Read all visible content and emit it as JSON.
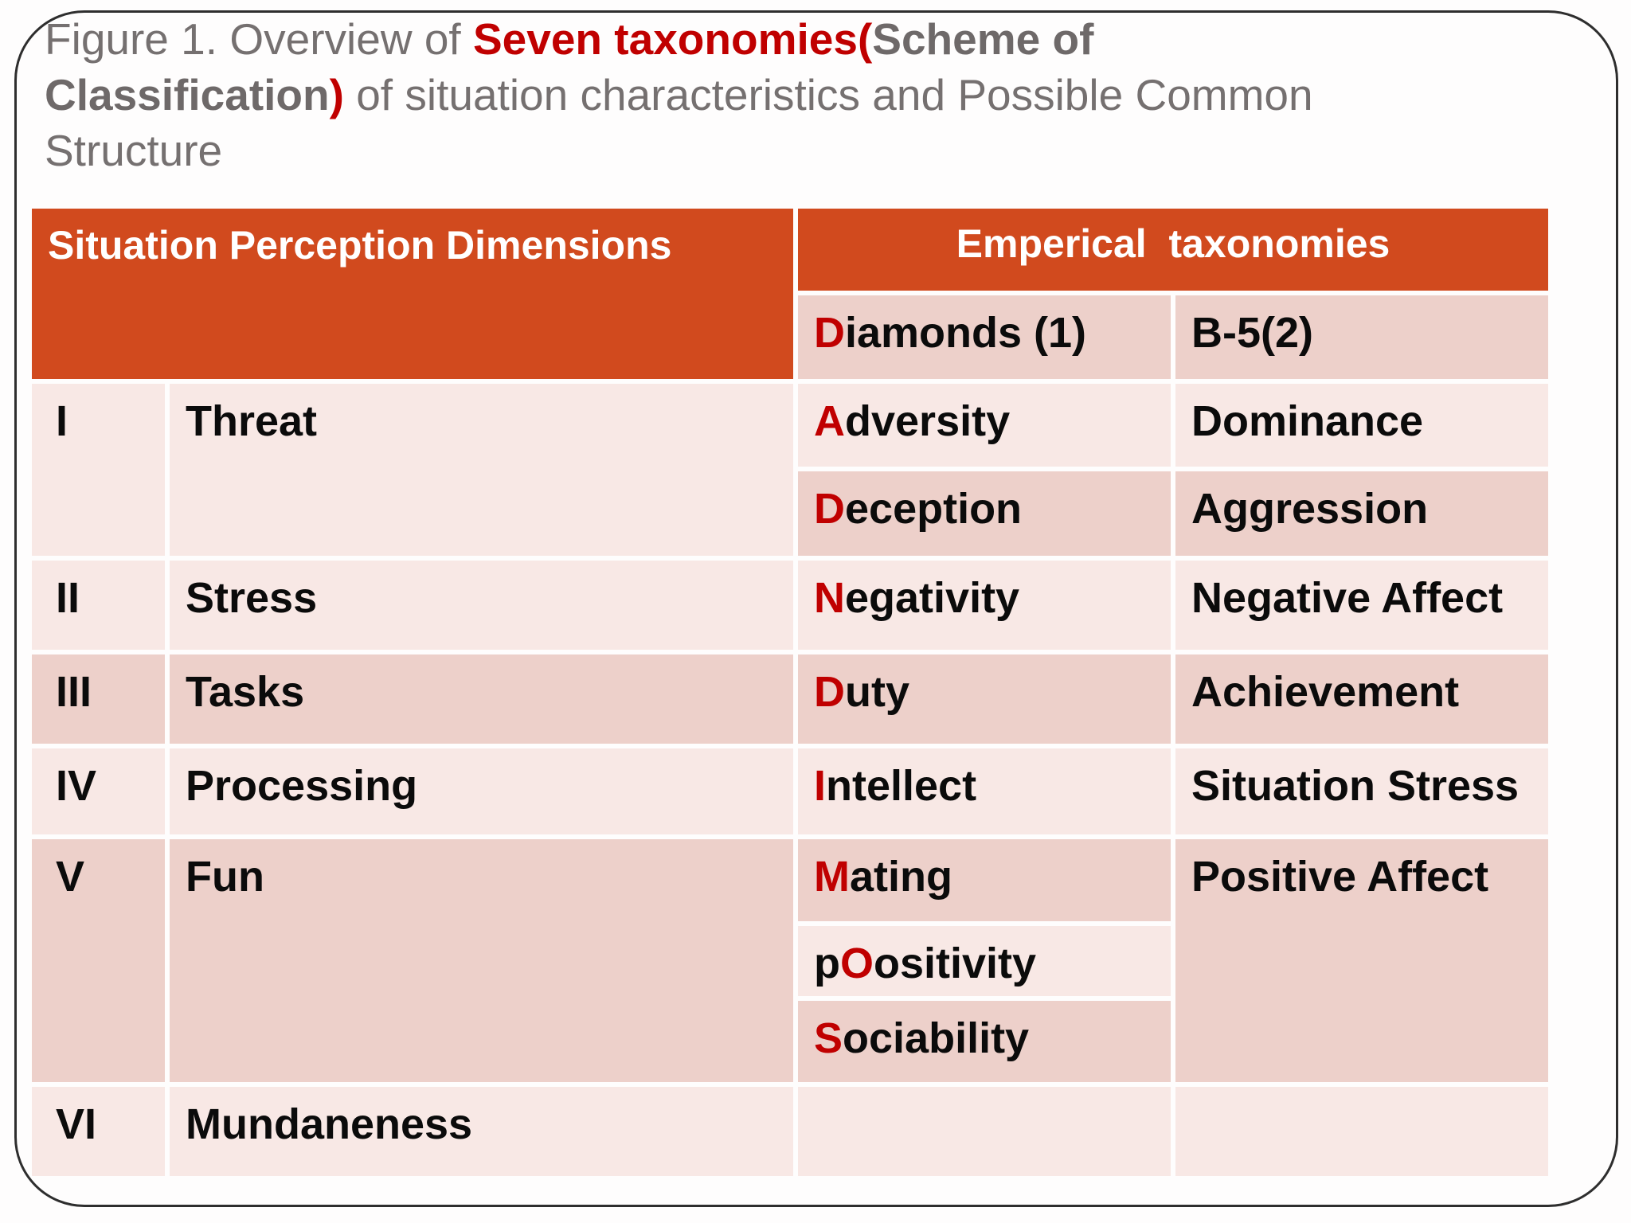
{
  "slide": {
    "title": {
      "seg1": "Figure 1. Overview of ",
      "seg2": "Seven taxonomies(",
      "seg3": "Scheme of",
      "seg4": "Classification",
      "seg5": ")",
      "seg6": " of situation characteristics and Possible Common",
      "seg7": "Structure"
    },
    "colors": {
      "accent_orange": "#d14a1e",
      "band_light": "#f8e8e5",
      "band_dark": "#edd0ca",
      "red_letter": "#c00000",
      "title_gray": "#757070",
      "frame_border": "#2e2e2e"
    },
    "table": {
      "header_left": "Situation Perception Dimensions",
      "header_right": "Emperical  taxonomies",
      "subheader": {
        "diamonds_red": "D",
        "diamonds_rest": "iamonds (1)",
        "b5": "B-5(2)"
      },
      "rows": {
        "i": {
          "num": "I",
          "dim": "Threat"
        },
        "adversity": {
          "red": "A",
          "rest": "dversity"
        },
        "dominance": "Dominance",
        "deception": {
          "red": "D",
          "rest": "eception"
        },
        "aggression": "Aggression",
        "ii": {
          "num": "II",
          "dim": "Stress"
        },
        "negativity": {
          "red": "N",
          "rest": "egativity"
        },
        "negative_affect": "Negative Affect",
        "iii": {
          "num": "III",
          "dim": "Tasks"
        },
        "duty": {
          "red": "D",
          "rest": "uty"
        },
        "achievement": "Achievement",
        "iv": {
          "num": "IV",
          "dim": "Processing"
        },
        "intellect": {
          "red": "I",
          "rest": "ntellect"
        },
        "situation_stress": "Situation Stress",
        "v": {
          "num": "V",
          "dim": "Fun"
        },
        "mating": {
          "red": "M",
          "rest": "ating"
        },
        "poositivity": {
          "pre": "p",
          "red": "O",
          "rest": "ositivity"
        },
        "sociability": {
          "red": "S",
          "rest": "ociability"
        },
        "positive_affect": "Positive Affect",
        "vi": {
          "num": "VI",
          "dim": "Mundaneness"
        }
      }
    }
  }
}
